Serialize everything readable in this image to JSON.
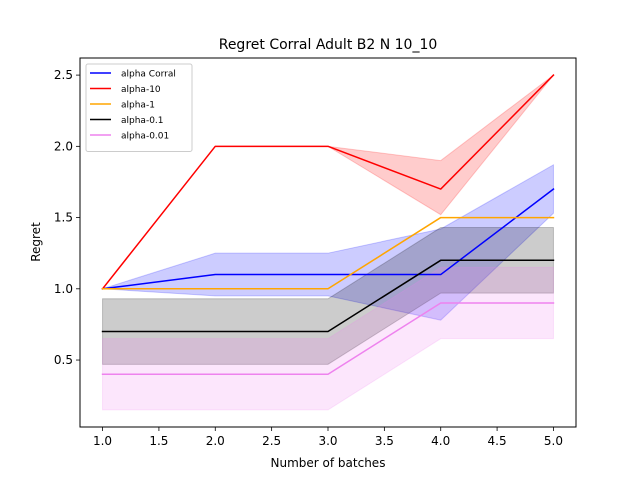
{
  "chart_data": {
    "type": "line",
    "title": "Regret Corral Adult B2 N 10_10",
    "xlabel": "Number of batches",
    "ylabel": "Regret",
    "xlim": [
      0.8,
      5.2
    ],
    "ylim": [
      0.03,
      2.62
    ],
    "xticks": [
      1.0,
      1.5,
      2.0,
      2.5,
      3.0,
      3.5,
      4.0,
      4.5,
      5.0
    ],
    "xtick_labels": [
      "1.0",
      "1.5",
      "2.0",
      "2.5",
      "3.0",
      "3.5",
      "4.0",
      "4.5",
      "5.0"
    ],
    "yticks": [
      0.5,
      1.0,
      1.5,
      2.0,
      2.5
    ],
    "ytick_labels": [
      "0.5",
      "1.0",
      "1.5",
      "2.0",
      "2.5"
    ],
    "grid": false,
    "legend_position": "upper-left",
    "x": [
      1,
      2,
      3,
      4,
      5
    ],
    "series": [
      {
        "name": "alpha Corral",
        "color": "#0000ff",
        "values": [
          1.0,
          1.1,
          1.1,
          1.1,
          1.7
        ],
        "band_lower": [
          1.0,
          0.95,
          0.95,
          0.78,
          1.53
        ],
        "band_upper": [
          1.0,
          1.25,
          1.25,
          1.42,
          1.87
        ]
      },
      {
        "name": "alpha-10",
        "color": "#ff0000",
        "values": [
          1.0,
          2.0,
          2.0,
          1.7,
          2.5
        ],
        "band_lower": [
          1.0,
          2.0,
          2.0,
          1.52,
          2.5
        ],
        "band_upper": [
          1.0,
          2.0,
          2.0,
          1.9,
          2.5
        ]
      },
      {
        "name": "alpha-1",
        "color": "#ffa500",
        "values": [
          1.0,
          1.0,
          1.0,
          1.5,
          1.5
        ],
        "band_lower": null,
        "band_upper": null
      },
      {
        "name": "alpha-0.1",
        "color": "#000000",
        "values": [
          0.7,
          0.7,
          0.7,
          1.2,
          1.2
        ],
        "band_lower": [
          0.47,
          0.47,
          0.47,
          0.97,
          0.97
        ],
        "band_upper": [
          0.93,
          0.93,
          0.93,
          1.43,
          1.43
        ]
      },
      {
        "name": "alpha-0.01",
        "color": "#ee82ee",
        "values": [
          0.4,
          0.4,
          0.4,
          0.9,
          0.9
        ],
        "band_lower": [
          0.15,
          0.15,
          0.15,
          0.65,
          0.65
        ],
        "band_upper": [
          0.65,
          0.65,
          0.65,
          1.15,
          1.15
        ]
      }
    ]
  }
}
